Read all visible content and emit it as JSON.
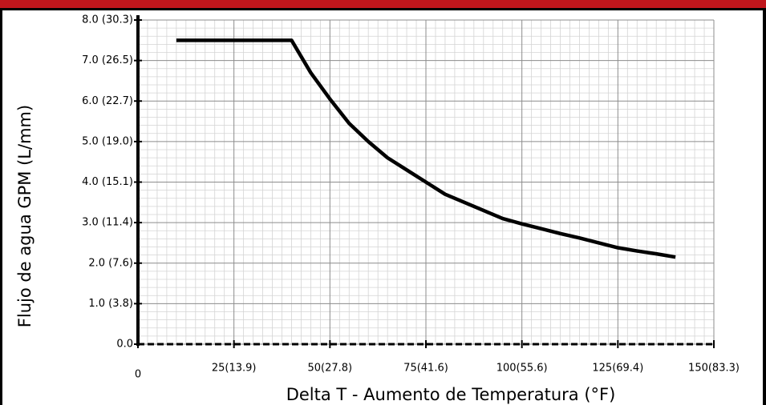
{
  "chart_data": {
    "type": "line",
    "xlabel": "Delta T - Aumento de Temperatura (°F)",
    "ylabel": "Flujo de agua GPM (L/mm)",
    "x": [
      10,
      40,
      45,
      50,
      55,
      60,
      65,
      70,
      75,
      80,
      85,
      90,
      95,
      100,
      105,
      110,
      115,
      120,
      125,
      130,
      135,
      140
    ],
    "series": [
      {
        "color": "#000000",
        "values": [
          7.5,
          7.5,
          6.7,
          6.05,
          5.45,
          5.0,
          4.6,
          4.3,
          4.0,
          3.7,
          3.5,
          3.3,
          3.1,
          2.97,
          2.85,
          2.73,
          2.62,
          2.5,
          2.38,
          2.3,
          2.23,
          2.15
        ]
      }
    ],
    "xlim": [
      0,
      150
    ],
    "xticks": [
      0,
      {
        "value": 25,
        "label": "25(13.9)"
      },
      {
        "value": 50,
        "label": "50(27.8)"
      },
      {
        "value": 75,
        "label": "75(41.6)"
      },
      {
        "value": 100,
        "label": "100(55.6)"
      },
      {
        "value": 125,
        "label": "125(69.4)"
      },
      {
        "value": 150,
        "label": "150(83.3)"
      }
    ],
    "ylim": [
      0,
      8
    ],
    "yticks": [
      {
        "value": 0,
        "label": "0.0"
      },
      {
        "value": 1,
        "label": "1.0 (3.8)"
      },
      {
        "value": 2,
        "label": "2.0 (7.6)"
      },
      {
        "value": 3,
        "label": "3.0 (11.4)"
      },
      {
        "value": 4,
        "label": "4.0 (15.1)"
      },
      {
        "value": 5,
        "label": "5.0 (19.0)"
      },
      {
        "value": 6,
        "label": "6.0 (22.7)"
      },
      {
        "value": 7,
        "label": "7.0 (26.5)"
      },
      {
        "value": 8,
        "label": "8.0 (30.3)"
      }
    ],
    "grid": true
  }
}
